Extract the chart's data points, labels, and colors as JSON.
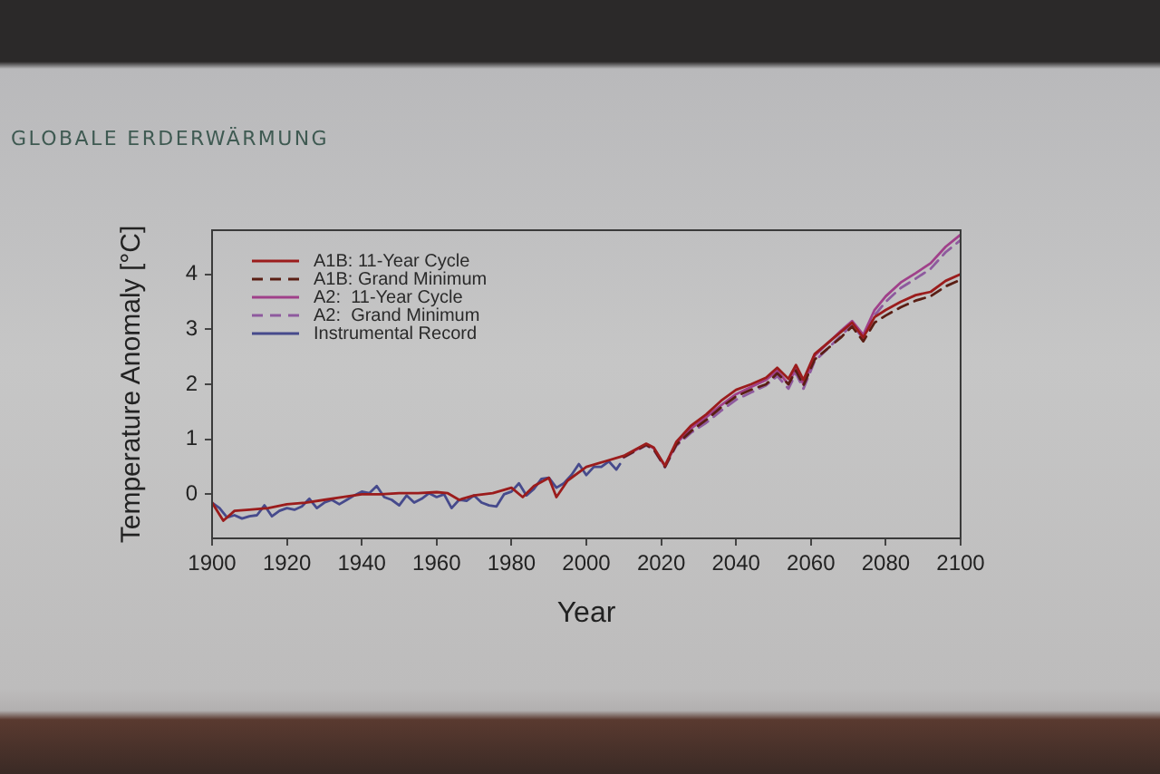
{
  "chart_data": {
    "type": "line",
    "title": "GLOBALE ERDERWÄRMUNG",
    "xlabel": "Year",
    "ylabel": "Temperature Anomaly [°C]",
    "xlim": [
      1900,
      2100
    ],
    "xticks": [
      1900,
      1920,
      1940,
      1960,
      1980,
      2000,
      2020,
      2040,
      2060,
      2080,
      2100
    ],
    "ylim": [
      -0.8,
      4.8
    ],
    "yticks": [
      0,
      1,
      2,
      3,
      4
    ],
    "legend": "top left",
    "series": [
      {
        "name": "A1B: 11-Year Cycle",
        "color": "#9b1c1c",
        "line_style": "solid",
        "x": [
          1900,
          1903,
          1906,
          1910,
          1915,
          1920,
          1925,
          1930,
          1935,
          1940,
          1945,
          1950,
          1955,
          1960,
          1963,
          1966,
          1970,
          1975,
          1980,
          1983,
          1986,
          1990,
          1992,
          1995,
          2000,
          2005,
          2010,
          2016,
          2018,
          2021,
          2024,
          2028,
          2032,
          2036,
          2040,
          2044,
          2048,
          2051,
          2054,
          2056,
          2058,
          2061,
          2065,
          2068,
          2071,
          2074,
          2077,
          2080,
          2084,
          2088,
          2092,
          2096,
          2100
        ],
        "values": [
          -0.15,
          -0.48,
          -0.3,
          -0.28,
          -0.25,
          -0.18,
          -0.15,
          -0.1,
          -0.05,
          0.0,
          0.0,
          0.02,
          0.02,
          0.04,
          0.02,
          -0.1,
          -0.02,
          0.02,
          0.12,
          -0.05,
          0.15,
          0.3,
          -0.05,
          0.25,
          0.5,
          0.6,
          0.7,
          0.92,
          0.85,
          0.52,
          0.95,
          1.25,
          1.45,
          1.7,
          1.9,
          2.0,
          2.12,
          2.3,
          2.1,
          2.35,
          2.08,
          2.55,
          2.78,
          2.95,
          3.12,
          2.85,
          3.22,
          3.35,
          3.5,
          3.62,
          3.68,
          3.88,
          4.0
        ]
      },
      {
        "name": "A1B: Grand Minimum",
        "color": "#5a1e14",
        "line_style": "dashed",
        "x": [
          2010,
          2016,
          2018,
          2021,
          2024,
          2028,
          2032,
          2036,
          2040,
          2044,
          2048,
          2051,
          2054,
          2056,
          2058,
          2061,
          2065,
          2068,
          2071,
          2074,
          2077,
          2080,
          2084,
          2088,
          2092,
          2096,
          2100
        ],
        "values": [
          0.68,
          0.9,
          0.82,
          0.5,
          0.9,
          1.15,
          1.35,
          1.58,
          1.78,
          1.9,
          2.0,
          2.2,
          2.0,
          2.25,
          1.98,
          2.45,
          2.68,
          2.85,
          3.05,
          2.78,
          3.12,
          3.25,
          3.4,
          3.52,
          3.6,
          3.78,
          3.9
        ]
      },
      {
        "name": "A2:  11-Year Cycle",
        "color": "#a0408a",
        "line_style": "solid",
        "x": [
          2010,
          2016,
          2018,
          2021,
          2024,
          2028,
          2032,
          2036,
          2040,
          2044,
          2048,
          2051,
          2054,
          2056,
          2058,
          2061,
          2065,
          2068,
          2071,
          2074,
          2077,
          2080,
          2084,
          2088,
          2092,
          2096,
          2100
        ],
        "values": [
          0.69,
          0.91,
          0.84,
          0.51,
          0.92,
          1.2,
          1.4,
          1.62,
          1.82,
          1.95,
          2.08,
          2.25,
          2.0,
          2.3,
          2.0,
          2.52,
          2.78,
          2.97,
          3.15,
          2.9,
          3.35,
          3.6,
          3.85,
          4.02,
          4.2,
          4.5,
          4.72
        ]
      },
      {
        "name": "A2:  Grand Minimum",
        "color": "#8e5a9e",
        "line_style": "dashed",
        "x": [
          2010,
          2016,
          2018,
          2021,
          2024,
          2028,
          2032,
          2036,
          2040,
          2044,
          2048,
          2051,
          2054,
          2056,
          2058,
          2061,
          2065,
          2068,
          2071,
          2074,
          2077,
          2080,
          2084,
          2088,
          2092,
          2096,
          2100
        ],
        "values": [
          0.67,
          0.89,
          0.81,
          0.49,
          0.88,
          1.12,
          1.3,
          1.52,
          1.72,
          1.85,
          1.98,
          2.15,
          1.92,
          2.2,
          1.92,
          2.42,
          2.68,
          2.88,
          3.08,
          2.83,
          3.25,
          3.5,
          3.75,
          3.92,
          4.1,
          4.4,
          4.62
        ]
      },
      {
        "name": "Instrumental Record",
        "color": "#464a8c",
        "line_style": "solid",
        "x": [
          1900,
          1902,
          1904,
          1906,
          1908,
          1910,
          1912,
          1914,
          1916,
          1918,
          1920,
          1922,
          1924,
          1926,
          1928,
          1930,
          1932,
          1934,
          1936,
          1938,
          1940,
          1942,
          1944,
          1946,
          1948,
          1950,
          1952,
          1954,
          1956,
          1958,
          1960,
          1962,
          1964,
          1966,
          1968,
          1970,
          1972,
          1974,
          1976,
          1978,
          1980,
          1982,
          1984,
          1986,
          1988,
          1990,
          1992,
          1994,
          1996,
          1998,
          2000,
          2002,
          2004,
          2006,
          2008,
          2009
        ],
        "values": [
          -0.15,
          -0.25,
          -0.42,
          -0.38,
          -0.44,
          -0.4,
          -0.38,
          -0.2,
          -0.4,
          -0.3,
          -0.25,
          -0.28,
          -0.22,
          -0.08,
          -0.25,
          -0.15,
          -0.1,
          -0.18,
          -0.1,
          -0.02,
          0.05,
          0.02,
          0.15,
          -0.05,
          -0.1,
          -0.2,
          -0.02,
          -0.15,
          -0.08,
          0.02,
          -0.05,
          0.0,
          -0.25,
          -0.1,
          -0.12,
          -0.02,
          -0.15,
          -0.2,
          -0.22,
          0.0,
          0.05,
          0.2,
          -0.02,
          0.1,
          0.28,
          0.3,
          0.12,
          0.2,
          0.35,
          0.55,
          0.35,
          0.5,
          0.5,
          0.6,
          0.45,
          0.55
        ]
      }
    ]
  }
}
